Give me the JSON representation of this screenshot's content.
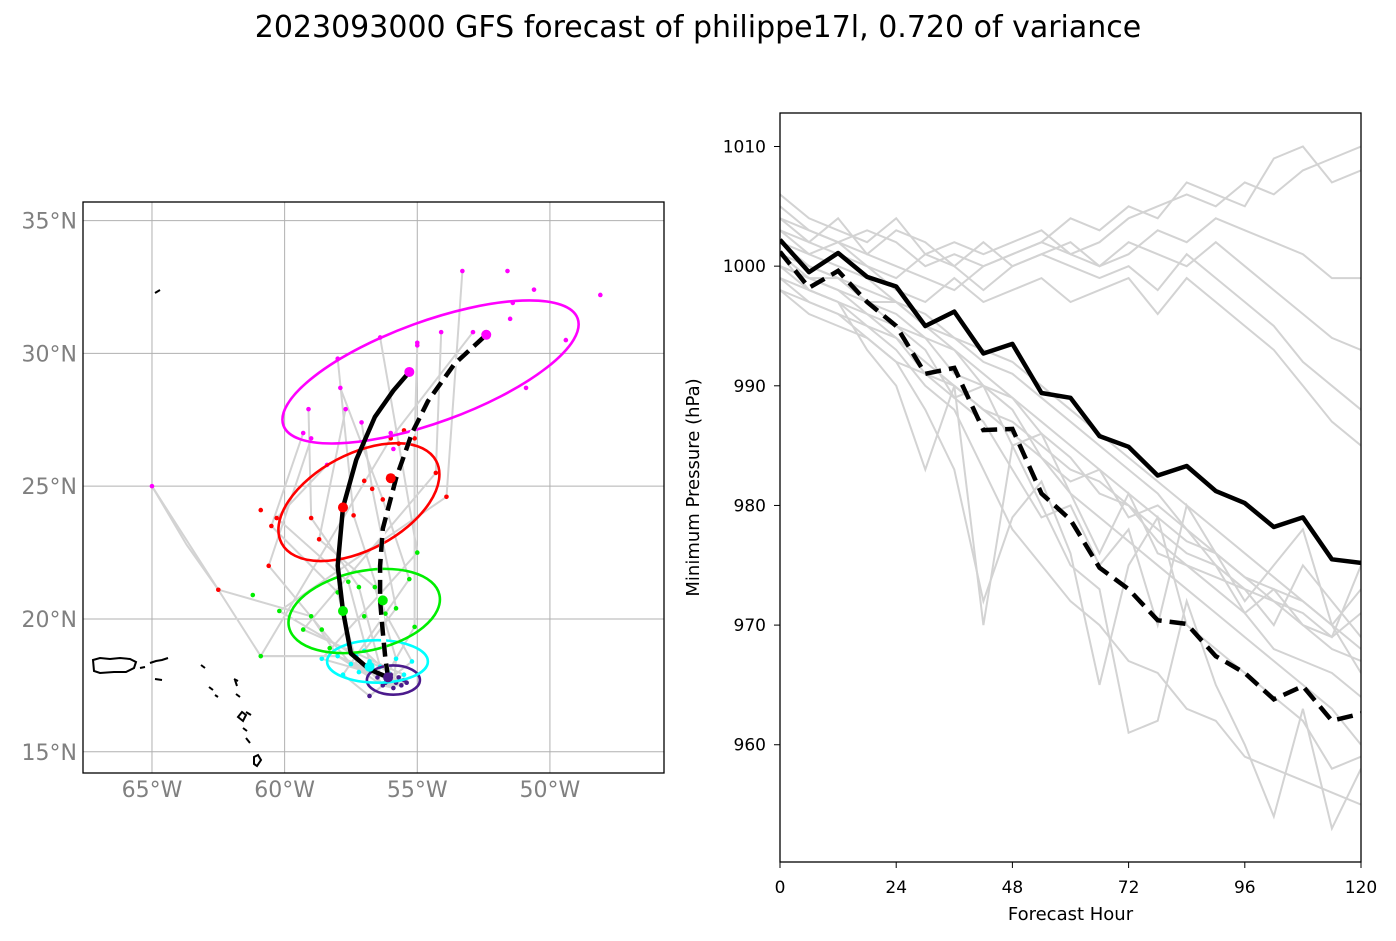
{
  "title": "2023093000 GFS forecast of philippe17l, 0.720 of variance",
  "chart_data": [
    {
      "type": "map",
      "lat_ticks": [
        {
          "value": 35,
          "label": "35°N"
        },
        {
          "value": 30,
          "label": "30°N"
        },
        {
          "value": 25,
          "label": "25°N"
        },
        {
          "value": 20,
          "label": "20°N"
        },
        {
          "value": 15,
          "label": "15°N"
        }
      ],
      "lon_ticks": [
        {
          "value": -65,
          "label": "65°W"
        },
        {
          "value": -60,
          "label": "60°W"
        },
        {
          "value": -55,
          "label": "55°W"
        },
        {
          "value": -50,
          "label": "50°W"
        }
      ],
      "xlim": [
        -67.6,
        -45.7
      ],
      "ylim": [
        14.2,
        35.7
      ],
      "grid": true,
      "colors": {
        "ellipse_0": "#4b1a8c",
        "ellipse_24": "#00ffff",
        "ellipse_48": "#00ee00",
        "ellipse_72": "#ff0000",
        "ellipse_96": "#ff00ff",
        "member_track": "#d3d3d3",
        "tracks": "#000000"
      },
      "mean_track": [
        [
          -56.1,
          17.8
        ],
        [
          -56.2,
          18.5
        ],
        [
          -56.3,
          19.5
        ],
        [
          -56.4,
          20.7
        ],
        [
          -56.4,
          22.0
        ],
        [
          -56.3,
          23.4
        ],
        [
          -55.8,
          25.3
        ],
        [
          -55.2,
          27.0
        ],
        [
          -54.6,
          28.2
        ],
        [
          -53.6,
          29.6
        ],
        [
          -52.4,
          30.7
        ]
      ],
      "control_track": [
        [
          -56.1,
          17.8
        ],
        [
          -56.8,
          18.1
        ],
        [
          -57.5,
          18.7
        ],
        [
          -57.8,
          20.3
        ],
        [
          -58.0,
          22.0
        ],
        [
          -57.8,
          24.2
        ],
        [
          -57.3,
          26.0
        ],
        [
          -56.6,
          27.6
        ],
        [
          -55.9,
          28.6
        ],
        [
          -55.3,
          29.3
        ]
      ],
      "mean_points": [
        {
          "lon": -56.1,
          "lat": 17.8,
          "color": "#4b1a8c"
        },
        {
          "lon": -56.3,
          "lat": 20.7,
          "color": "#00ee00"
        },
        {
          "lon": -56.0,
          "lat": 25.3,
          "color": "#ff0000"
        },
        {
          "lon": -52.4,
          "lat": 30.7,
          "color": "#ff00ff"
        }
      ],
      "control_points": [
        {
          "lon": -56.8,
          "lat": 18.2,
          "color": "#00ffff"
        },
        {
          "lon": -57.8,
          "lat": 20.3,
          "color": "#00ee00"
        },
        {
          "lon": -57.8,
          "lat": 24.2,
          "color": "#ff0000"
        },
        {
          "lon": -55.3,
          "lat": 29.3,
          "color": "#ff00ff"
        }
      ],
      "ellipses": [
        {
          "lon": -55.9,
          "lat": 17.7,
          "rx": 1.0,
          "ry": 0.55,
          "angle": 0,
          "color": "#4b1a8c"
        },
        {
          "lon": -56.5,
          "lat": 18.4,
          "rx": 1.9,
          "ry": 0.8,
          "angle": 0,
          "color": "#00ffff"
        },
        {
          "lon": -57.0,
          "lat": 20.3,
          "rx": 2.9,
          "ry": 1.5,
          "angle": 12,
          "color": "#00ee00"
        },
        {
          "lon": -57.2,
          "lat": 24.4,
          "rx": 3.3,
          "ry": 1.8,
          "angle": 28,
          "color": "#ff0000"
        },
        {
          "lon": -54.5,
          "lat": 29.3,
          "rx": 5.9,
          "ry": 1.9,
          "angle": 20,
          "color": "#ff00ff"
        }
      ],
      "scatter": [
        {
          "color": "#4b1a8c",
          "points": [
            [
              -56.3,
              17.5
            ],
            [
              -55.8,
              17.6
            ],
            [
              -56.0,
              17.9
            ],
            [
              -55.5,
              17.7
            ],
            [
              -56.5,
              17.8
            ],
            [
              -55.9,
              17.4
            ],
            [
              -56.1,
              17.7
            ],
            [
              -55.6,
              17.5
            ],
            [
              -56.8,
              17.1
            ],
            [
              -55.4,
              17.6
            ],
            [
              -56.2,
              17.6
            ],
            [
              -55.7,
              17.8
            ]
          ]
        },
        {
          "color": "#00ffff",
          "points": [
            [
              -58.0,
              18.6
            ],
            [
              -57.5,
              18.3
            ],
            [
              -57.2,
              18.0
            ],
            [
              -56.8,
              18.4
            ],
            [
              -56.4,
              18.2
            ],
            [
              -55.8,
              18.5
            ],
            [
              -55.2,
              18.4
            ],
            [
              -57.0,
              18.8
            ],
            [
              -57.8,
              17.9
            ],
            [
              -58.6,
              18.5
            ],
            [
              -56.1,
              18.0
            ],
            [
              -55.5,
              17.9
            ],
            [
              -57.3,
              18.6
            ]
          ]
        },
        {
          "color": "#00ee00",
          "points": [
            [
              -59.0,
              20.1
            ],
            [
              -58.6,
              19.6
            ],
            [
              -58.0,
              21.0
            ],
            [
              -57.6,
              21.4
            ],
            [
              -57.2,
              21.2
            ],
            [
              -56.6,
              21.2
            ],
            [
              -56.2,
              20.2
            ],
            [
              -55.8,
              20.4
            ],
            [
              -55.3,
              21.5
            ],
            [
              -55.0,
              22.5
            ],
            [
              -55.1,
              19.7
            ],
            [
              -59.3,
              19.6
            ],
            [
              -60.2,
              20.3
            ],
            [
              -60.9,
              18.6
            ],
            [
              -61.2,
              20.9
            ],
            [
              -57.0,
              20.1
            ],
            [
              -58.3,
              18.9
            ]
          ]
        },
        {
          "color": "#ff0000",
          "points": [
            [
              -62.5,
              21.1
            ],
            [
              -60.6,
              22.0
            ],
            [
              -60.5,
              23.5
            ],
            [
              -60.3,
              23.8
            ],
            [
              -59.0,
              23.8
            ],
            [
              -58.7,
              23.0
            ],
            [
              -57.4,
              23.9
            ],
            [
              -56.7,
              24.9
            ],
            [
              -56.3,
              24.5
            ],
            [
              -55.7,
              26.6
            ],
            [
              -55.1,
              26.8
            ],
            [
              -54.3,
              25.5
            ],
            [
              -53.9,
              24.6
            ],
            [
              -56.0,
              26.8
            ],
            [
              -57.0,
              25.2
            ],
            [
              -55.5,
              27.1
            ],
            [
              -60.9,
              24.1
            ]
          ]
        },
        {
          "color": "#ff00ff",
          "points": [
            [
              -65.0,
              25.0
            ],
            [
              -59.0,
              26.8
            ],
            [
              -59.3,
              27.0
            ],
            [
              -58.4,
              25.8
            ],
            [
              -59.1,
              27.9
            ],
            [
              -57.7,
              27.9
            ],
            [
              -58.0,
              29.8
            ],
            [
              -57.1,
              27.4
            ],
            [
              -57.9,
              28.7
            ],
            [
              -56.4,
              30.6
            ],
            [
              -55.0,
              30.3
            ],
            [
              -54.1,
              30.8
            ],
            [
              -53.3,
              33.1
            ],
            [
              -52.9,
              30.8
            ],
            [
              -51.6,
              33.1
            ],
            [
              -51.4,
              31.9
            ],
            [
              -51.5,
              31.3
            ],
            [
              -50.6,
              32.4
            ],
            [
              -49.4,
              30.5
            ],
            [
              -50.9,
              28.7
            ],
            [
              -48.1,
              32.2
            ],
            [
              -55.9,
              26.4
            ],
            [
              -55.0,
              30.4
            ],
            [
              -56.0,
              27.0
            ]
          ]
        }
      ]
    },
    {
      "type": "line",
      "xlabel": "Forecast Hour",
      "ylabel": "Minimum Pressure (hPa)",
      "xlim": [
        0,
        120
      ],
      "ylim": [
        950.2,
        1012.8
      ],
      "xticks": [
        0,
        24,
        48,
        72,
        96,
        120
      ],
      "yticks": [
        960,
        970,
        980,
        990,
        1000,
        1010
      ],
      "grid": false,
      "x": [
        0,
        6,
        12,
        18,
        24,
        30,
        36,
        42,
        48,
        54,
        60,
        66,
        72,
        78,
        84,
        90,
        96,
        102,
        108,
        114,
        120
      ],
      "series": [
        {
          "style": "mean",
          "values": [
            1002.2,
            999.5,
            1001.1,
            999.1,
            998.3,
            995.0,
            996.2,
            992.7,
            993.5,
            989.4,
            989.0,
            985.8,
            984.9,
            982.5,
            983.3,
            981.2,
            980.2,
            978.2,
            979.0,
            975.5,
            975.2
          ]
        },
        {
          "style": "control",
          "values": [
            1001.2,
            998.2,
            999.6,
            997.0,
            995.0,
            991.0,
            991.5,
            986.3,
            986.4,
            981.0,
            978.8,
            974.8,
            973.0,
            970.4,
            970.1,
            967.4,
            966.0,
            963.8,
            964.9,
            962.0,
            962.6
          ]
        },
        {
          "style": "member",
          "values": [
            1006,
            1004,
            1003,
            1002,
            1004,
            1001,
            1002,
            1001,
            1002,
            1003,
            1001,
            1002,
            1004,
            1005,
            1006,
            1005,
            1007,
            1006,
            1008,
            1009,
            1010
          ]
        },
        {
          "style": "member",
          "values": [
            1005,
            1003,
            1002,
            1003,
            1002,
            1000,
            1001,
            1000,
            1001,
            1002,
            1004,
            1003,
            1005,
            1004,
            1007,
            1006,
            1005,
            1009,
            1010,
            1007,
            1008
          ]
        },
        {
          "style": "member",
          "values": [
            1004,
            1002,
            1004,
            1001,
            1003,
            1002,
            1000,
            1002,
            1000,
            1001,
            1002,
            1000,
            1001,
            1003,
            1002,
            1004,
            1003,
            1002,
            1001,
            999,
            999
          ]
        },
        {
          "style": "member",
          "values": [
            1003,
            1002,
            1001,
            1000,
            999,
            1001,
            1000,
            998,
            1000,
            1001,
            1000,
            999,
            1000,
            998,
            1001,
            999,
            997,
            995,
            992,
            990,
            988
          ]
        },
        {
          "style": "member",
          "values": [
            1004,
            1003,
            1002,
            1001,
            1000,
            999,
            998,
            1000,
            1001,
            1002,
            1001,
            1000,
            1002,
            1001,
            1000,
            1002,
            1000,
            998,
            996,
            994,
            993
          ]
        },
        {
          "style": "member",
          "values": [
            1003,
            1001,
            1002,
            1000,
            998,
            997,
            999,
            997,
            998,
            999,
            997,
            998,
            999,
            996,
            999,
            997,
            995,
            993,
            990,
            987,
            985
          ]
        },
        {
          "style": "member",
          "values": [
            1002,
            1001,
            1000,
            999,
            997,
            996,
            994,
            993,
            992,
            990,
            988,
            986,
            984,
            982,
            980,
            978,
            976,
            974,
            972,
            970,
            968
          ]
        },
        {
          "style": "member",
          "values": [
            1001,
            999,
            998,
            996,
            994,
            992,
            990,
            988,
            986,
            984,
            981,
            979,
            977,
            975,
            973,
            971,
            969,
            967,
            965,
            963,
            960
          ]
        },
        {
          "style": "member",
          "values": [
            1000,
            998,
            997,
            995,
            993,
            990,
            988,
            983,
            978,
            975,
            972,
            970,
            967,
            966,
            963,
            962,
            959,
            958,
            957,
            956,
            955
          ]
        },
        {
          "style": "member",
          "values": [
            999,
            997,
            996,
            994,
            992,
            988,
            983,
            972,
            979,
            982,
            976,
            965,
            975,
            979,
            970,
            968,
            966,
            964,
            962,
            958,
            959
          ]
        },
        {
          "style": "member",
          "values": [
            1001,
            998,
            997,
            993,
            990,
            983,
            990,
            970,
            985,
            980,
            975,
            973,
            961,
            962,
            972,
            965,
            960,
            954,
            963,
            953,
            958
          ]
        },
        {
          "style": "member",
          "values": [
            1000,
            999,
            998,
            997,
            995,
            993,
            989,
            987,
            983,
            979,
            980,
            975,
            978,
            970,
            980,
            976,
            972,
            975,
            978,
            970,
            966
          ]
        },
        {
          "style": "member",
          "values": [
            998,
            997,
            996,
            995,
            994,
            991,
            989,
            990,
            985,
            986,
            981,
            976,
            981,
            976,
            975,
            974,
            973,
            970,
            975,
            972,
            969
          ]
        },
        {
          "style": "member",
          "values": [
            999,
            998,
            997,
            996,
            995,
            994,
            991,
            990,
            988,
            984,
            982,
            983,
            979,
            980,
            978,
            975,
            971,
            973,
            970,
            968,
            967
          ]
        },
        {
          "style": "member",
          "values": [
            1002,
            1000,
            999,
            998,
            997,
            995,
            993,
            991,
            989,
            987,
            985,
            983,
            981,
            979,
            977,
            976,
            974,
            972,
            971,
            969,
            971
          ]
        },
        {
          "style": "member",
          "values": [
            1001,
            1000,
            999,
            997,
            996,
            994,
            993,
            990,
            989,
            986,
            984,
            981,
            980,
            977,
            975,
            973,
            971,
            968,
            967,
            966,
            964
          ]
        },
        {
          "style": "member",
          "values": [
            998,
            996,
            995,
            994,
            992,
            991,
            990,
            988,
            987,
            985,
            983,
            982,
            980,
            978,
            976,
            975,
            973,
            972,
            970,
            969,
            975
          ]
        },
        {
          "style": "member",
          "values": [
            1000,
            999,
            999,
            997,
            997,
            995,
            994,
            992,
            991,
            989,
            987,
            985,
            983,
            981,
            978,
            976,
            974,
            973,
            972,
            970,
            973
          ]
        }
      ]
    }
  ]
}
